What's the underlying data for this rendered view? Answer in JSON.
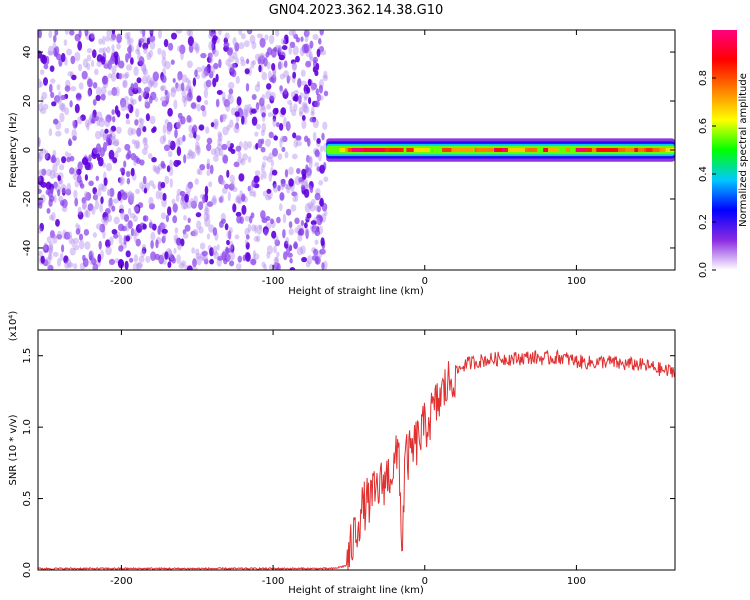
{
  "title": "GN04.2023.362.14.38.G10",
  "chart_data": [
    {
      "type": "heatmap",
      "xlabel": "Height of straight line (km)",
      "ylabel": "Frequency (Hz)",
      "xlim": [
        -255,
        165
      ],
      "ylim": [
        -49,
        49
      ],
      "xticks": [
        -200,
        -100,
        0,
        100
      ],
      "xtick_labels": [
        "-200",
        "-100",
        "0",
        "100"
      ],
      "yticks": [
        -40,
        -20,
        0,
        20,
        40
      ],
      "ytick_labels": [
        "-40",
        "-20",
        "0",
        "20",
        "40"
      ],
      "noise_region_x": [
        -255,
        -65
      ],
      "signal_band_x": [
        -65,
        165
      ],
      "signal_band_y": [
        -2.5,
        2.5
      ],
      "colorbar": {
        "label": "Normalized spectral amplitude",
        "range": [
          0,
          1
        ],
        "ticks": [
          0.0,
          0.2,
          0.4,
          0.6,
          0.8
        ],
        "tick_labels": [
          "0.0",
          "0.2",
          "0.4",
          "0.6",
          "0.8"
        ],
        "colors": [
          "#ffffff",
          "#8a2be2",
          "#0000ff",
          "#00c8ff",
          "#00ff00",
          "#ffff00",
          "#ff8000",
          "#ff0000",
          "#ff0080"
        ]
      }
    },
    {
      "type": "line",
      "xlabel": "Height of straight line (km)",
      "ylabel": "SNR (10 * v/v)",
      "y_multiplier": "(x10⁴)",
      "xlim": [
        -255,
        165
      ],
      "ylim": [
        0,
        1.68
      ],
      "xticks": [
        -200,
        -100,
        0,
        100
      ],
      "xtick_labels": [
        "-200",
        "-100",
        "0",
        "100"
      ],
      "yticks": [
        0.0,
        0.5,
        1.0,
        1.5
      ],
      "ytick_labels": [
        "0.0",
        "0.5",
        "1.0",
        "1.5"
      ],
      "color": "#e03030",
      "series": [
        {
          "x": [
            -255,
            -200,
            -150,
            -100,
            -60,
            -52,
            -50,
            -48,
            -45,
            -42,
            -40,
            -35,
            -30,
            -25,
            -20,
            -17,
            -15,
            -13,
            -10,
            -5,
            0,
            5,
            10,
            15,
            20,
            25,
            30,
            40,
            50,
            60,
            70,
            80,
            90,
            100,
            110,
            120,
            130,
            140,
            150,
            160,
            165
          ],
          "y": [
            0.01,
            0.01,
            0.01,
            0.01,
            0.01,
            0.03,
            0.08,
            0.18,
            0.3,
            0.4,
            0.45,
            0.5,
            0.58,
            0.65,
            0.72,
            0.85,
            0.1,
            0.78,
            0.8,
            0.9,
            1.0,
            1.1,
            1.2,
            1.3,
            1.38,
            1.43,
            1.45,
            1.47,
            1.48,
            1.48,
            1.49,
            1.48,
            1.49,
            1.46,
            1.45,
            1.46,
            1.44,
            1.44,
            1.42,
            1.39,
            1.4
          ]
        }
      ]
    }
  ]
}
